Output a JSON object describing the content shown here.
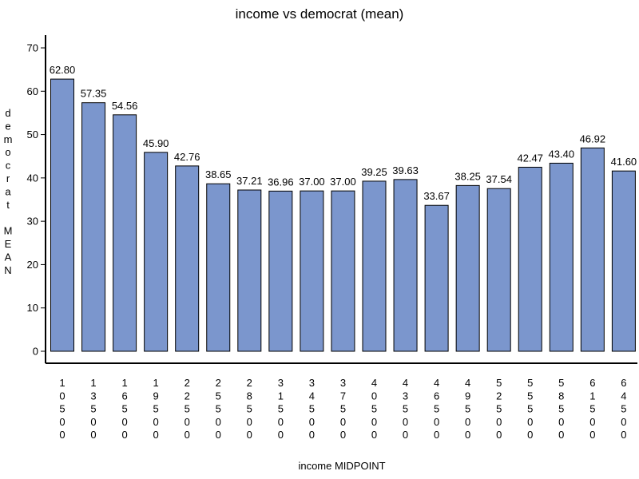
{
  "chart_data": {
    "type": "bar",
    "title": "income vs democrat (mean)",
    "xlabel": "income MIDPOINT",
    "ylabel": "democrat MEAN",
    "ylim": [
      0,
      70
    ],
    "yticks": [
      0,
      10,
      20,
      30,
      40,
      50,
      60,
      70
    ],
    "categories": [
      "10500",
      "13500",
      "16500",
      "19500",
      "22500",
      "25500",
      "28500",
      "31500",
      "34500",
      "37500",
      "40500",
      "43500",
      "46500",
      "49500",
      "52500",
      "55500",
      "58500",
      "61500",
      "64500"
    ],
    "values": [
      62.8,
      57.35,
      54.56,
      45.9,
      42.76,
      38.65,
      37.21,
      36.96,
      37.0,
      37.0,
      39.25,
      39.63,
      33.67,
      38.25,
      37.54,
      42.47,
      43.4,
      46.92,
      41.6
    ],
    "value_labels": [
      "62.80",
      "57.35",
      "54.56",
      "45.90",
      "42.76",
      "38.65",
      "37.21",
      "36.96",
      "37.00",
      "37.00",
      "39.25",
      "39.63",
      "33.67",
      "38.25",
      "37.54",
      "42.47",
      "43.40",
      "46.92",
      "41.60"
    ],
    "bar_color": "#7b96cd",
    "grid": false,
    "legend": "none"
  }
}
